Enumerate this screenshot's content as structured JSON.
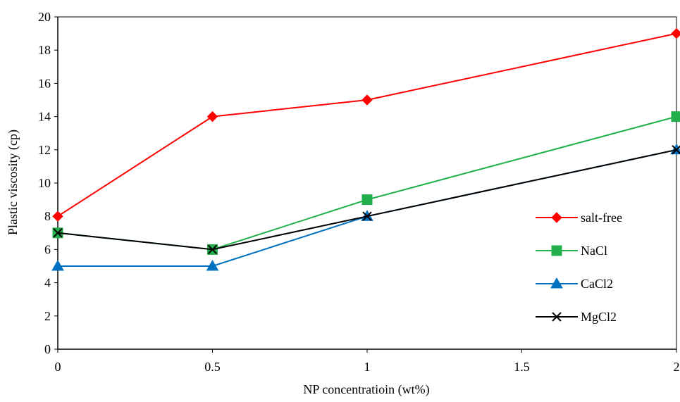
{
  "chart_data": {
    "type": "line",
    "xlabel": "NP concentratioin (wt%)",
    "ylabel": "Plastic viscosity (cp)",
    "xlim": [
      0,
      2
    ],
    "ylim": [
      0,
      20
    ],
    "xticks": [
      "0",
      "0.5",
      "1",
      "1.5",
      "2"
    ],
    "yticks": [
      "0",
      "2",
      "4",
      "6",
      "8",
      "10",
      "12",
      "14",
      "16",
      "18",
      "20"
    ],
    "grid": false,
    "legend_position": "right",
    "series": [
      {
        "name": "salt-free",
        "color": "#ff0000",
        "marker": "diamond",
        "x": [
          0,
          0.5,
          1,
          2
        ],
        "y": [
          8,
          14,
          15,
          19
        ]
      },
      {
        "name": "NaCl",
        "color": "#21b04b",
        "marker": "square",
        "x": [
          0,
          0.5,
          1,
          2
        ],
        "y": [
          7,
          6,
          9,
          14
        ]
      },
      {
        "name": "CaCl2",
        "color": "#0070c0",
        "marker": "triangle",
        "x": [
          0,
          0.5,
          1,
          2
        ],
        "y": [
          5,
          5,
          8,
          12
        ]
      },
      {
        "name": "MgCl2",
        "color": "#000000",
        "marker": "x",
        "x": [
          0,
          0.5,
          1,
          2
        ],
        "y": [
          7,
          6,
          8,
          12
        ]
      }
    ]
  }
}
